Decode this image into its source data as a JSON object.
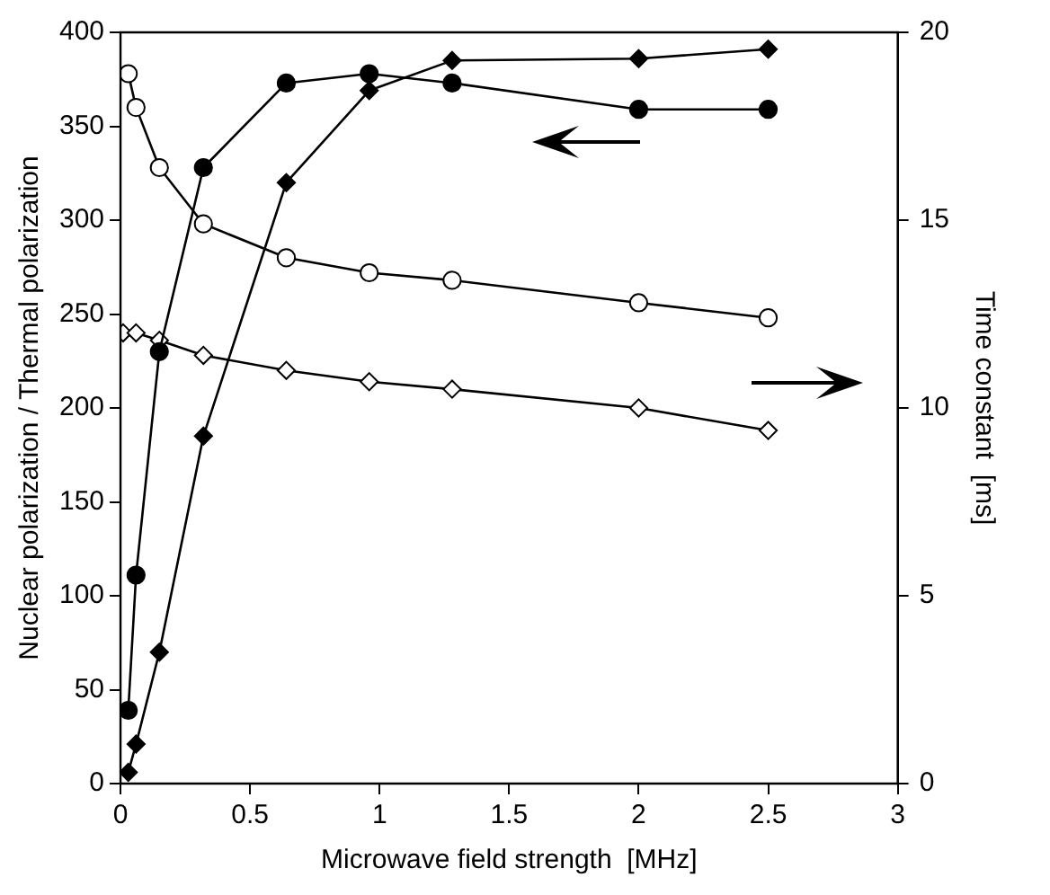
{
  "chart_data": {
    "type": "line",
    "xlabel": "Microwave field strength  [MHz]",
    "ylabel": "Nuclear polarization / Thermal polarization",
    "y2label": "Time constant  [ms]",
    "series": [
      {
        "color": "#000000",
        "marker": "circle",
        "x": [
          0.03,
          0.06,
          0.15,
          0.32,
          0.64,
          0.96,
          1.28,
          2.0,
          2.5
        ],
        "values": [
          39,
          111,
          230,
          328,
          373,
          378,
          373,
          359,
          359
        ]
      },
      {
        "color": "#000000",
        "marker": "diamond",
        "x": [
          0.03,
          0.06,
          0.15,
          0.32,
          0.64,
          0.96,
          1.28,
          2.0,
          2.5
        ],
        "values": [
          6,
          21,
          70,
          185,
          320,
          369,
          385,
          386,
          391
        ]
      },
      {
        "color": "#000000",
        "marker": "circle",
        "axis": "y2",
        "x": [
          0.03,
          0.06,
          0.15,
          0.32,
          0.64,
          0.96,
          1.28,
          2.0,
          2.5
        ],
        "values": [
          18.9,
          18.0,
          16.4,
          14.9,
          14.0,
          13.6,
          13.4,
          12.8,
          12.4
        ]
      },
      {
        "color": "#000000",
        "marker": "diamond",
        "axis": "y2",
        "x": [
          0.01,
          0.06,
          0.15,
          0.32,
          0.64,
          0.96,
          1.28,
          2.0,
          2.5
        ],
        "values": [
          12.0,
          12.0,
          11.8,
          11.4,
          11.0,
          10.7,
          10.5,
          10.0,
          9.4
        ]
      }
    ],
    "xlim": [
      0,
      3
    ],
    "xticks": [
      0,
      0.5,
      1,
      1.5,
      2,
      2.5,
      3
    ],
    "ylim": [
      0,
      400
    ],
    "yticks": [
      0,
      50,
      100,
      150,
      200,
      250,
      300,
      350,
      400
    ],
    "y2lim": [
      0,
      20
    ],
    "y2ticks": [
      0,
      5,
      10,
      15,
      20
    ],
    "grid": false,
    "legend": false
  }
}
